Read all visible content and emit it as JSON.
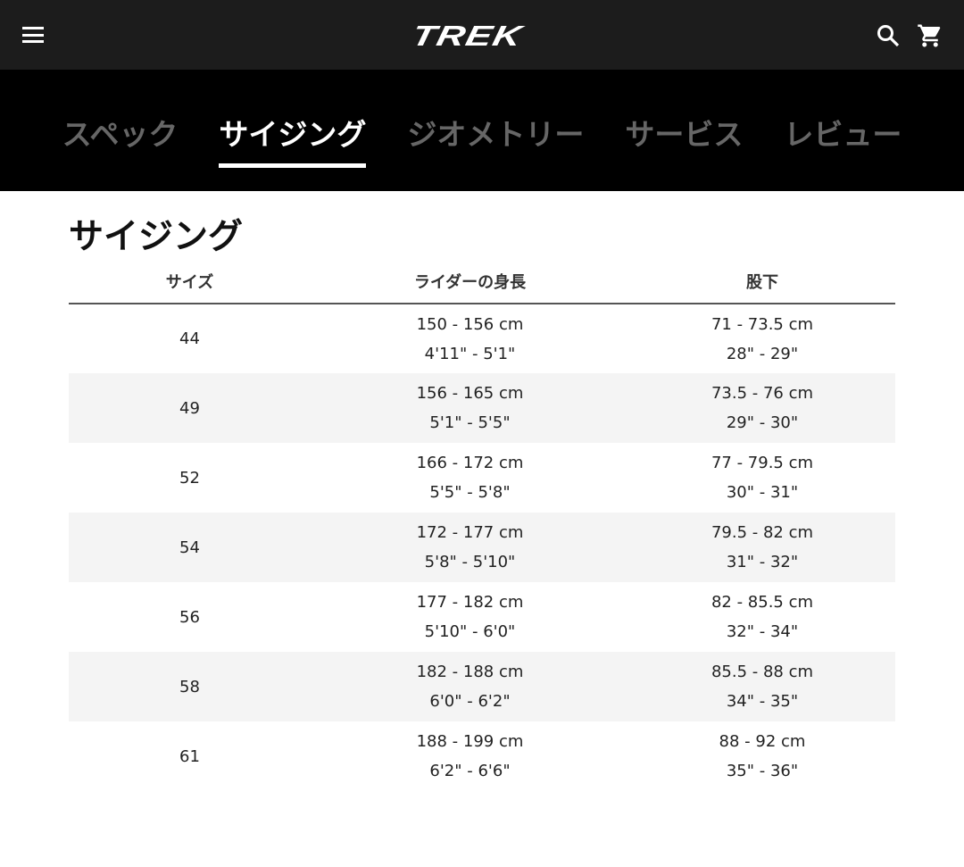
{
  "header": {
    "logo": "TREK",
    "icons": [
      "menu-icon",
      "search-icon",
      "cart-icon"
    ]
  },
  "tabs": [
    {
      "label": "スペック",
      "active": false
    },
    {
      "label": "サイジング",
      "active": true
    },
    {
      "label": "ジオメトリー",
      "active": false
    },
    {
      "label": "サービス",
      "active": false
    },
    {
      "label": "レビュー",
      "active": false
    }
  ],
  "section": {
    "title": "サイジング"
  },
  "table": {
    "headers": [
      "サイズ",
      "ライダーの身長",
      "股下"
    ],
    "rows": [
      {
        "size": "44",
        "height_cm": "150 - 156 cm",
        "height_in": "4'11\" - 5'1\"",
        "inseam_cm": "71 - 73.5 cm",
        "inseam_in": "28\" - 29\""
      },
      {
        "size": "49",
        "height_cm": "156 - 165 cm",
        "height_in": "5'1\" - 5'5\"",
        "inseam_cm": "73.5 - 76 cm",
        "inseam_in": "29\" - 30\""
      },
      {
        "size": "52",
        "height_cm": "166 - 172 cm",
        "height_in": "5'5\" - 5'8\"",
        "inseam_cm": "77 - 79.5 cm",
        "inseam_in": "30\" - 31\""
      },
      {
        "size": "54",
        "height_cm": "172 - 177 cm",
        "height_in": "5'8\" - 5'10\"",
        "inseam_cm": "79.5 - 82 cm",
        "inseam_in": "31\" - 32\""
      },
      {
        "size": "56",
        "height_cm": "177 - 182 cm",
        "height_in": "5'10\" - 6'0\"",
        "inseam_cm": "82 - 85.5 cm",
        "inseam_in": "32\" - 34\""
      },
      {
        "size": "58",
        "height_cm": "182 - 188 cm",
        "height_in": "6'0\" - 6'2\"",
        "inseam_cm": "85.5 - 88 cm",
        "inseam_in": "34\" - 35\""
      },
      {
        "size": "61",
        "height_cm": "188 - 199 cm",
        "height_in": "6'2\" - 6'6\"",
        "inseam_cm": "88 - 92 cm",
        "inseam_in": "35\" - 36\""
      }
    ]
  }
}
